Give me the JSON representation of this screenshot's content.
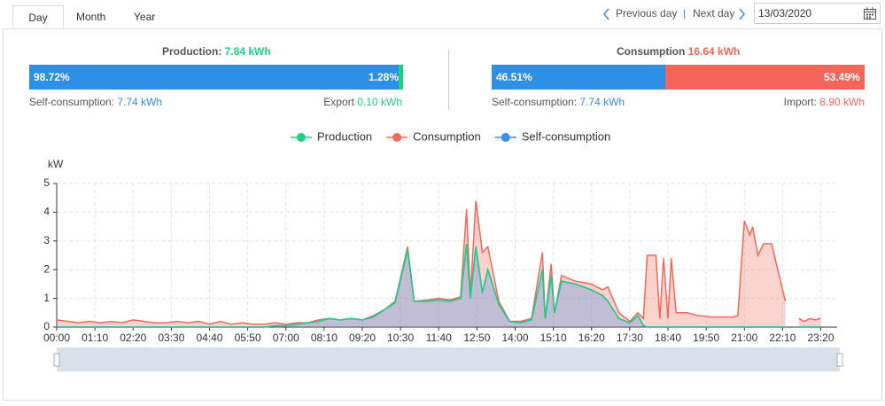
{
  "tabs": [
    "Day",
    "Month",
    "Year"
  ],
  "nav": {
    "previous": "Previous day",
    "next": "Next day",
    "date": "13/03/2020"
  },
  "production": {
    "title": "Production:",
    "total": "7.84 kWh",
    "values": [
      98.72,
      1.28
    ],
    "value_labels": [
      "98.72%",
      "1.28%"
    ],
    "colors": [
      "#2e8fe6",
      "#1fcf80"
    ],
    "left_label": "Self-consumption:",
    "left_value": "7.74 kWh",
    "right_label": "Export",
    "right_value": "0.10 kWh"
  },
  "consumption": {
    "title": "Consumption",
    "total": "16.64 kWh",
    "values": [
      46.51,
      53.49
    ],
    "value_labels": [
      "46.51%",
      "53.49%"
    ],
    "colors": [
      "#2e8fe6",
      "#f5655a"
    ],
    "left_label": "Self-consumption:",
    "left_value": "7.74 kWh",
    "right_label": "Import:",
    "right_value": "8.90 kWh"
  },
  "chart_data": {
    "type": "area",
    "y_label": "kW",
    "grid": true,
    "xlim": [
      0,
      1430
    ],
    "ylim": [
      0,
      5
    ],
    "yticks": [
      0,
      1,
      2,
      3,
      4,
      5
    ],
    "xticks": [
      {
        "value": 0,
        "label": "00:00"
      },
      {
        "value": 70,
        "label": "01:10"
      },
      {
        "value": 140,
        "label": "02:20"
      },
      {
        "value": 210,
        "label": "03:30"
      },
      {
        "value": 280,
        "label": "04:40"
      },
      {
        "value": 350,
        "label": "05:50"
      },
      {
        "value": 420,
        "label": "07:00"
      },
      {
        "value": 490,
        "label": "08:10"
      },
      {
        "value": 560,
        "label": "09:20"
      },
      {
        "value": 630,
        "label": "10:30"
      },
      {
        "value": 700,
        "label": "11:40"
      },
      {
        "value": 770,
        "label": "12:50"
      },
      {
        "value": 840,
        "label": "14:00"
      },
      {
        "value": 910,
        "label": "15:10"
      },
      {
        "value": 980,
        "label": "16:20"
      },
      {
        "value": 1050,
        "label": "17:30"
      },
      {
        "value": 1120,
        "label": "18:40"
      },
      {
        "value": 1190,
        "label": "19:50"
      },
      {
        "value": 1260,
        "label": "21:00"
      },
      {
        "value": 1330,
        "label": "22:10"
      },
      {
        "value": 1400,
        "label": "23:20"
      }
    ],
    "x": [
      0,
      20,
      40,
      60,
      80,
      100,
      120,
      140,
      160,
      180,
      200,
      220,
      240,
      260,
      280,
      300,
      320,
      340,
      360,
      380,
      400,
      420,
      440,
      460,
      480,
      500,
      520,
      540,
      560,
      580,
      600,
      620,
      643,
      655,
      680,
      700,
      720,
      740,
      751,
      758,
      768,
      780,
      790,
      810,
      830,
      850,
      870,
      890,
      895,
      906,
      912,
      925,
      950,
      980,
      1000,
      1010,
      1030,
      1050,
      1065,
      1075,
      1082,
      1098,
      1105,
      1112,
      1120,
      1126,
      1135,
      1155,
      1175,
      1200,
      1240,
      1248,
      1260,
      1270,
      1275,
      1285,
      1295,
      1310,
      1325,
      1335,
      1340,
      1345,
      1350,
      1360,
      1370,
      1380,
      1390,
      1400,
      1410,
      1420
    ],
    "series": [
      {
        "name": "Production",
        "color": "#1fcf80",
        "fill": false,
        "values": [
          0,
          0,
          0,
          0,
          0,
          0,
          0,
          0,
          0,
          0,
          0,
          0,
          0,
          0,
          0,
          0,
          0,
          0,
          0,
          0,
          0.05,
          0.05,
          0.1,
          0.15,
          0.2,
          0.3,
          0.25,
          0.3,
          0.25,
          0.35,
          0.6,
          0.85,
          2.7,
          0.9,
          0.9,
          0.95,
          0.9,
          1.0,
          2.9,
          1.0,
          2.8,
          1.2,
          2.0,
          0.8,
          0.2,
          0.15,
          0.25,
          2.0,
          0.3,
          1.8,
          0.5,
          1.6,
          1.5,
          1.3,
          1.1,
          0.9,
          0.3,
          0.15,
          0.4,
          0.05,
          0,
          0,
          0,
          0,
          0,
          0,
          0,
          0,
          0,
          0,
          0,
          0,
          0,
          0,
          0,
          0,
          0,
          0,
          0,
          0,
          null,
          0,
          null,
          0,
          0,
          0,
          0,
          0,
          null,
          0
        ]
      },
      {
        "name": "Consumption",
        "color": "#f0695c",
        "fill": true,
        "values": [
          0.25,
          0.2,
          0.15,
          0.2,
          0.15,
          0.2,
          0.15,
          0.25,
          0.2,
          0.15,
          0.15,
          0.2,
          0.15,
          0.2,
          0.1,
          0.2,
          0.1,
          0.15,
          0.1,
          0.1,
          0.15,
          0.1,
          0.15,
          0.15,
          0.25,
          0.3,
          0.25,
          0.3,
          0.25,
          0.4,
          0.6,
          0.9,
          2.8,
          0.9,
          0.95,
          1.0,
          0.95,
          1.05,
          4.1,
          1.1,
          4.4,
          2.6,
          2.8,
          0.9,
          0.2,
          0.2,
          0.3,
          2.6,
          0.3,
          2.2,
          0.5,
          1.8,
          1.6,
          1.5,
          1.3,
          1.4,
          0.5,
          0.2,
          0.5,
          0.3,
          2.5,
          2.5,
          0.3,
          2.4,
          0.3,
          2.4,
          0.5,
          0.5,
          0.4,
          0.35,
          0.35,
          0.4,
          3.7,
          3.2,
          3.5,
          2.5,
          2.9,
          2.9,
          1.7,
          0.9,
          null,
          1.2,
          null,
          0.3,
          0.2,
          0.3,
          0.25,
          0.3,
          null,
          0.1
        ]
      },
      {
        "name": "Self-consumption",
        "color": "#3a8ee6",
        "fill": true,
        "values": [
          0,
          0,
          0,
          0,
          0,
          0,
          0,
          0,
          0,
          0,
          0,
          0,
          0,
          0,
          0,
          0,
          0,
          0,
          0,
          0,
          0.05,
          0.05,
          0.1,
          0.15,
          0.2,
          0.3,
          0.25,
          0.3,
          0.25,
          0.35,
          0.6,
          0.85,
          2.7,
          0.9,
          0.9,
          0.95,
          0.9,
          1.0,
          2.9,
          1.0,
          2.8,
          1.2,
          2.0,
          0.8,
          0.2,
          0.15,
          0.25,
          2.0,
          0.3,
          1.8,
          0.5,
          1.6,
          1.5,
          1.3,
          1.1,
          0.9,
          0.3,
          0.15,
          0.4,
          0.05,
          0,
          0,
          0,
          0,
          0,
          0,
          0,
          0,
          0,
          0,
          0,
          0,
          0,
          0,
          0,
          0,
          0,
          0,
          0,
          0,
          null,
          0,
          null,
          0,
          0,
          0,
          0,
          0,
          null,
          0
        ]
      }
    ]
  }
}
